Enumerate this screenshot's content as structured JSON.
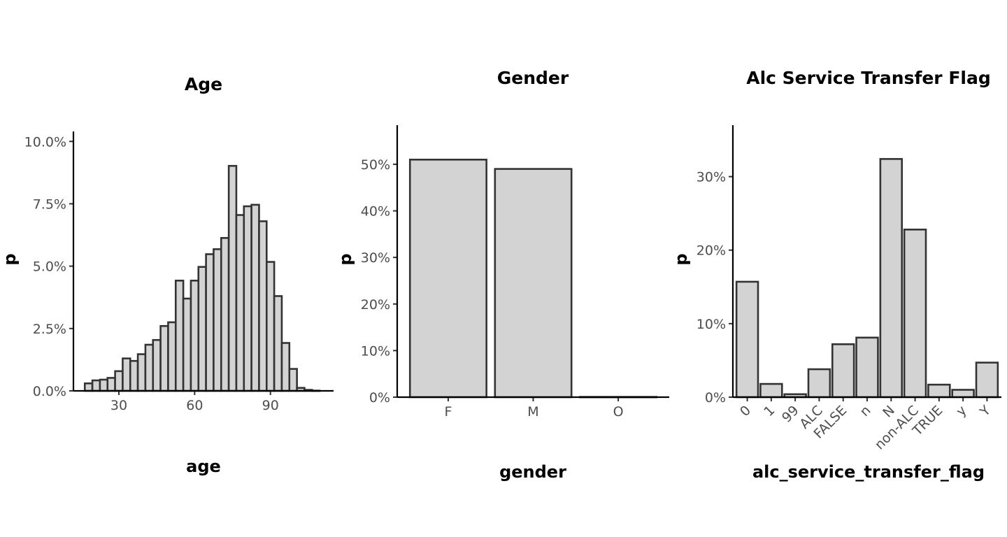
{
  "chart_data": [
    {
      "type": "bar",
      "title": "Age",
      "xlabel": "age",
      "ylabel": "p",
      "bin_width": 3,
      "x": [
        18,
        21,
        24,
        27,
        30,
        33,
        36,
        39,
        42,
        45,
        48,
        51,
        54,
        57,
        60,
        63,
        66,
        69,
        72,
        75,
        78,
        81,
        84,
        87,
        90,
        93,
        96,
        99,
        102,
        105,
        108
      ],
      "values": [
        0.3,
        0.42,
        0.45,
        0.52,
        0.79,
        1.3,
        1.2,
        1.47,
        1.85,
        2.04,
        2.6,
        2.75,
        4.42,
        3.7,
        4.42,
        4.97,
        5.48,
        5.68,
        6.13,
        9.02,
        7.05,
        7.4,
        7.46,
        6.8,
        5.17,
        3.8,
        1.92,
        0.88,
        0.12,
        0.04,
        0.01
      ],
      "ylim": [
        0,
        10.4
      ],
      "y_ticks": [
        0,
        2.5,
        5,
        7.5,
        10
      ],
      "y_tick_labels": [
        "0.0%",
        "2.5%",
        "5.0%",
        "7.5%",
        "10.0%"
      ],
      "x_ticks": [
        30,
        60,
        90
      ],
      "x_tick_labels": [
        "30",
        "60",
        "90"
      ],
      "xlim": [
        12,
        115
      ]
    },
    {
      "type": "bar",
      "title": "Gender",
      "xlabel": "gender",
      "ylabel": "p",
      "categories": [
        "F",
        "M",
        "O"
      ],
      "values": [
        51.0,
        49.0,
        0.05
      ],
      "ylim": [
        0,
        58.4
      ],
      "y_ticks": [
        0,
        10,
        20,
        30,
        40,
        50
      ],
      "y_tick_labels": [
        "0%",
        "10%",
        "20%",
        "30%",
        "40%",
        "50%"
      ]
    },
    {
      "type": "bar",
      "title": "Alc Service Transfer Flag",
      "xlabel": "alc_service_transfer_flag",
      "ylabel": "p",
      "categories": [
        "0",
        "1",
        "99",
        "ALC",
        "FALSE",
        "n",
        "N",
        "non-ALC",
        "TRUE",
        "y",
        "Y"
      ],
      "values": [
        15.7,
        1.8,
        0.4,
        3.8,
        7.2,
        8.1,
        32.4,
        22.8,
        1.7,
        1.0,
        4.7
      ],
      "ylim": [
        0,
        37.0
      ],
      "y_ticks": [
        0,
        10,
        20,
        30
      ],
      "y_tick_labels": [
        "0%",
        "10%",
        "20%",
        "30%"
      ]
    }
  ]
}
